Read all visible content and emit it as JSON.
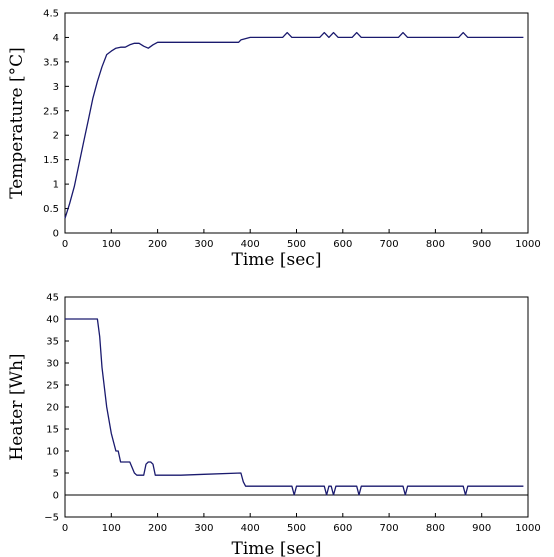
{
  "chart_data": [
    {
      "type": "line",
      "xlabel": "Time [sec]",
      "ylabel": "Temperature [°C]",
      "xlim": [
        0,
        1000
      ],
      "ylim": [
        0,
        4.5
      ],
      "xticks": [
        "0",
        "100",
        "200",
        "300",
        "400",
        "500",
        "600",
        "700",
        "800",
        "900",
        "1000"
      ],
      "yticks": [
        "0",
        "0.5",
        "1",
        "1.5",
        "2",
        "2.5",
        "3",
        "3.5",
        "4",
        "4.5"
      ],
      "grid": false,
      "line_color": "#1a1a6e",
      "series": [
        {
          "x": [
            0,
            10,
            20,
            30,
            40,
            50,
            60,
            70,
            80,
            90,
            100,
            110,
            120,
            130,
            140,
            150,
            160,
            170,
            180,
            190,
            200,
            250,
            300,
            350,
            375,
            380,
            400,
            450,
            470,
            480,
            490,
            500,
            550,
            560,
            570,
            580,
            590,
            600,
            620,
            630,
            640,
            700,
            720,
            730,
            740,
            750,
            800,
            850,
            860,
            870,
            900,
            950,
            990
          ],
          "y": [
            0.3,
            0.6,
            0.95,
            1.4,
            1.85,
            2.3,
            2.75,
            3.1,
            3.4,
            3.65,
            3.72,
            3.78,
            3.8,
            3.8,
            3.85,
            3.88,
            3.88,
            3.82,
            3.78,
            3.85,
            3.9,
            3.9,
            3.9,
            3.9,
            3.9,
            3.95,
            4.0,
            4.0,
            4.0,
            4.1,
            4.0,
            4.0,
            4.0,
            4.1,
            4.0,
            4.1,
            4.0,
            4.0,
            4.0,
            4.1,
            4.0,
            4.0,
            4.0,
            4.1,
            4.0,
            4.0,
            4.0,
            4.0,
            4.1,
            4.0,
            4.0,
            4.0,
            4.0
          ]
        }
      ]
    },
    {
      "type": "line",
      "xlabel": "Time [sec]",
      "ylabel": "Heater [Wh]",
      "xlim": [
        0,
        1000
      ],
      "ylim": [
        -5,
        45
      ],
      "xticks": [
        "0",
        "100",
        "200",
        "300",
        "400",
        "500",
        "600",
        "700",
        "800",
        "900",
        "1000"
      ],
      "yticks": [
        "−5",
        "0",
        "5",
        "10",
        "15",
        "20",
        "25",
        "30",
        "35",
        "40",
        "45"
      ],
      "grid": false,
      "line_color": "#1a1a6e",
      "series": [
        {
          "x": [
            0,
            60,
            70,
            75,
            80,
            90,
            100,
            110,
            115,
            120,
            130,
            140,
            150,
            155,
            160,
            170,
            175,
            180,
            185,
            190,
            195,
            200,
            205,
            210,
            250,
            300,
            380,
            385,
            390,
            400,
            450,
            480,
            490,
            495,
            500,
            550,
            560,
            565,
            570,
            575,
            580,
            585,
            590,
            595,
            600,
            620,
            630,
            635,
            640,
            700,
            720,
            730,
            735,
            740,
            745,
            750,
            800,
            850,
            860,
            865,
            870,
            875,
            880,
            900,
            950,
            990
          ],
          "y": [
            40,
            40,
            40,
            36,
            29,
            20,
            14,
            10,
            10,
            7.5,
            7.5,
            7.5,
            5,
            4.5,
            4.5,
            4.5,
            7,
            7.5,
            7.5,
            7,
            4.5,
            4.5,
            4.5,
            4.5,
            4.5,
            4.7,
            5,
            3,
            2,
            2,
            2,
            2,
            2,
            0,
            2,
            2,
            2,
            0,
            2,
            2,
            0,
            2,
            2,
            2,
            2,
            2,
            2,
            0,
            2,
            2,
            2,
            2,
            0,
            2,
            2,
            2,
            2,
            2,
            2,
            0,
            2,
            2,
            2,
            2,
            2,
            2
          ]
        }
      ]
    }
  ]
}
